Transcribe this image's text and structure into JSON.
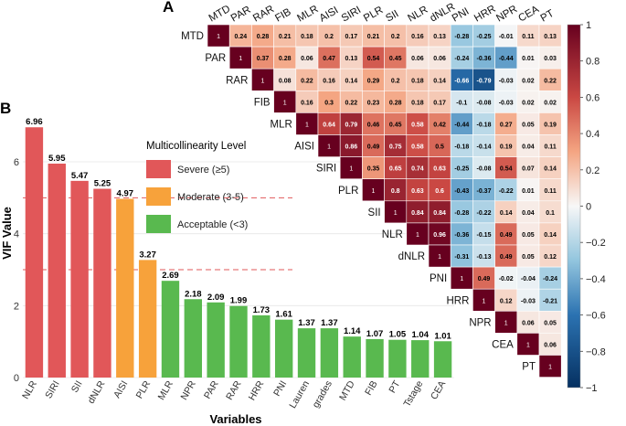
{
  "panel_labels": {
    "a": "A",
    "b": "B"
  },
  "colors": {
    "severe": "#e15759",
    "moderate": "#f7a23b",
    "acceptable": "#59b94f",
    "threshold": "#e15759",
    "grid": "#e6e6e6",
    "cmap_neg": "#053061",
    "cmap_mid": "#f7f7f7",
    "cmap_pos": "#67001f"
  },
  "chart_data": [
    {
      "type": "bar",
      "title": "",
      "xlabel": "Variables",
      "ylabel": "VIF Value",
      "ylim": [
        0,
        7.5
      ],
      "yticks": [
        "0",
        "2",
        "4",
        "6"
      ],
      "categories": [
        "NLR",
        "SIRI",
        "SII",
        "dNLR",
        "AISI",
        "PLR",
        "MLR",
        "NPR",
        "PAR",
        "RAR",
        "HRR",
        "PNI",
        "Lauren",
        "grades",
        "MTD",
        "FIB",
        "PT",
        "Tstage",
        "CEA"
      ],
      "values": [
        6.96,
        5.95,
        5.47,
        5.25,
        4.97,
        3.27,
        2.69,
        2.18,
        2.09,
        1.99,
        1.73,
        1.61,
        1.37,
        1.37,
        1.14,
        1.07,
        1.05,
        1.04,
        1.01
      ],
      "value_labels": [
        "6.96",
        "5.95",
        "5.47",
        "5.25",
        "4.97",
        "3.27",
        "2.69",
        "2.18",
        "2.09",
        "1.99",
        "1.73",
        "1.61",
        "1.37",
        "1.37",
        "1.14",
        "1.07",
        "1.05",
        "1.04",
        "1.01"
      ],
      "thresholds": [
        5,
        3
      ],
      "legend": {
        "title": "Multicollinearity Level",
        "position": "top-right",
        "items": [
          {
            "label": "Severe (≥5)",
            "level": "severe"
          },
          {
            "label": "Moderate (3-5)",
            "level": "moderate"
          },
          {
            "label": "Acceptable (<3)",
            "level": "acceptable"
          }
        ]
      }
    },
    {
      "type": "heatmap",
      "title": "",
      "variables": [
        "MTD",
        "PAR",
        "RAR",
        "FIB",
        "MLR",
        "AISI",
        "SIRI",
        "PLR",
        "SII",
        "NLR",
        "dNLR",
        "PNI",
        "HRR",
        "NPR",
        "CEA",
        "PT"
      ],
      "correlations": [
        [
          0.24,
          0.28,
          0.21,
          0.18,
          0.2,
          0.17,
          0.21,
          0.2,
          0.16,
          0.13,
          -0.28,
          -0.25,
          -0.01,
          0.11,
          0.13
        ],
        [
          0.37,
          0.28,
          0.06,
          0.47,
          0.13,
          0.54,
          0.45,
          0.06,
          0.06,
          -0.24,
          -0.36,
          -0.44,
          0.01,
          0.03
        ],
        [
          0.08,
          0.22,
          0.16,
          0.14,
          0.29,
          0.2,
          0.18,
          0.14,
          -0.66,
          -0.79,
          -0.03,
          0.02,
          0.22
        ],
        [
          0.16,
          0.3,
          0.22,
          0.23,
          0.28,
          0.18,
          0.17,
          -0.1,
          -0.08,
          -0.03,
          0.02,
          0.02
        ],
        [
          0.64,
          0.79,
          0.46,
          0.45,
          0.58,
          0.42,
          -0.44,
          -0.18,
          0.27,
          0.05,
          0.19
        ],
        [
          0.86,
          0.49,
          0.75,
          0.58,
          0.5,
          -0.18,
          -0.14,
          0.19,
          0.04,
          0.11
        ],
        [
          0.35,
          0.65,
          0.74,
          0.63,
          -0.25,
          -0.08,
          0.54,
          0.07,
          0.14
        ],
        [
          0.8,
          0.63,
          0.6,
          -0.43,
          -0.37,
          -0.22,
          0.01,
          0.11
        ],
        [
          0.84,
          0.84,
          -0.28,
          -0.22,
          0.14,
          0.04,
          0.1
        ],
        [
          0.96,
          -0.36,
          -0.15,
          0.49,
          0.05,
          0.14
        ],
        [
          -0.31,
          -0.13,
          0.49,
          0.05,
          0.12
        ],
        [
          0.49,
          -0.02,
          -0.04,
          -0.24
        ],
        [
          0.12,
          -0.03,
          -0.21
        ],
        [
          0.06,
          0.05
        ],
        [
          0.06
        ]
      ],
      "diagonal_label": "1",
      "colorbar": {
        "range": [
          -1,
          1
        ],
        "ticks": [
          1,
          0.8,
          0.6,
          0.4,
          0.2,
          0,
          -0.2,
          -0.4,
          -0.6,
          -0.8,
          -1
        ],
        "tick_labels": [
          "1",
          "0.8",
          "0.6",
          "0.4",
          "0.2",
          "0",
          "−0.2",
          "−0.4",
          "−0.6",
          "−0.8",
          "−1"
        ]
      }
    }
  ]
}
